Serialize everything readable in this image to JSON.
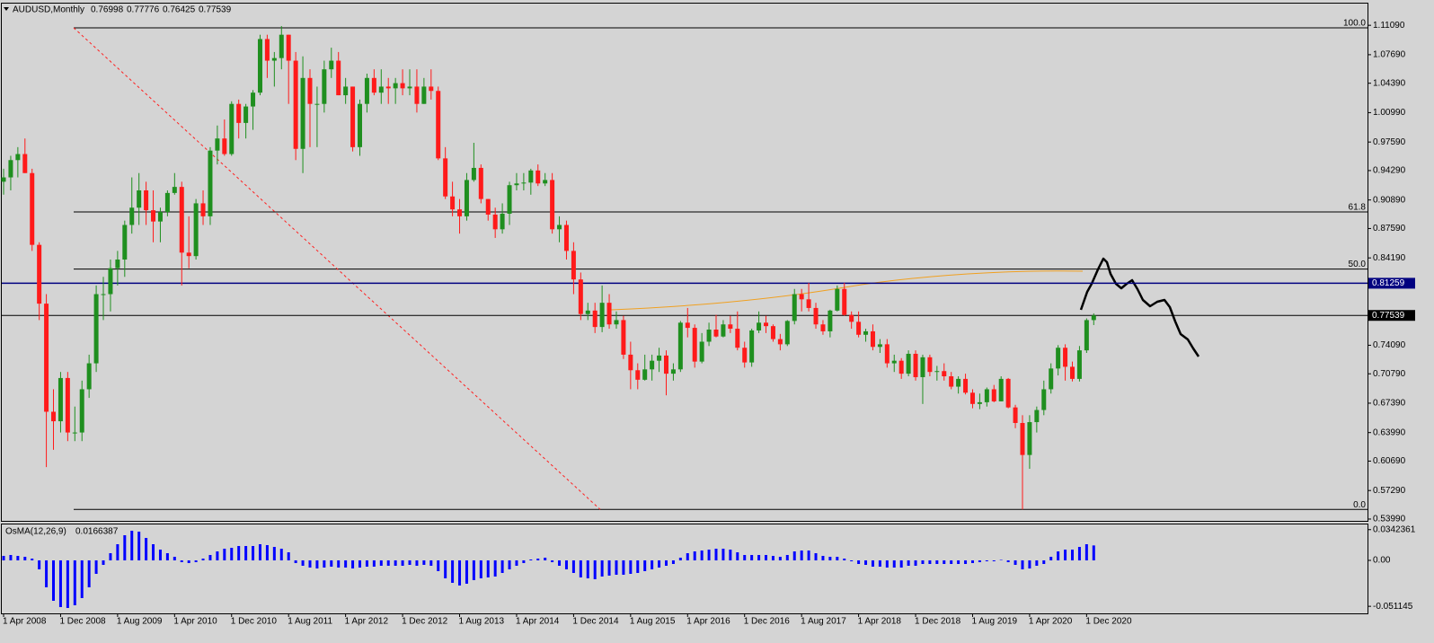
{
  "chart_data": {
    "type": "candlestick",
    "title": "AUDUSD,Monthly",
    "categories": [
      "1 Apr 2008",
      null,
      null,
      null,
      null,
      null,
      null,
      null,
      "1 Dec 2008",
      null,
      null,
      null,
      null,
      null,
      null,
      null,
      "1 Aug 2009",
      null,
      null,
      null,
      null,
      null,
      null,
      null,
      "1 Apr 2010",
      null,
      null,
      null,
      null,
      null,
      null,
      null,
      "1 Dec 2010",
      null,
      null,
      null,
      null,
      null,
      null,
      null,
      "1 Aug 2011",
      null,
      null,
      null,
      null,
      null,
      null,
      null,
      "1 Apr 2012",
      null,
      null,
      null,
      null,
      null,
      null,
      null,
      "1 Dec 2012",
      null,
      null,
      null,
      null,
      null,
      null,
      null,
      "1 Aug 2013",
      null,
      null,
      null,
      null,
      null,
      null,
      null,
      "1 Apr 2014",
      null,
      null,
      null,
      null,
      null,
      null,
      null,
      "1 Dec 2014",
      null,
      null,
      null,
      null,
      null,
      null,
      null,
      "1 Aug 2015",
      null,
      null,
      null,
      null,
      null,
      null,
      null,
      "1 Apr 2016",
      null,
      null,
      null,
      null,
      null,
      null,
      null,
      "1 Dec 2016",
      null,
      null,
      null,
      null,
      null,
      null,
      null,
      "1 Aug 2017",
      null,
      null,
      null,
      null,
      null,
      null,
      null,
      "1 Apr 2018",
      null,
      null,
      null,
      null,
      null,
      null,
      null,
      "1 Dec 2018",
      null,
      null,
      null,
      null,
      null,
      null,
      null,
      "1 Aug 2019",
      null,
      null,
      null,
      null,
      null,
      null,
      null,
      "1 Apr 2020",
      null,
      null,
      null,
      null,
      null,
      null,
      null,
      "1 Dec 2020",
      null
    ],
    "ohlc": [
      [
        0.93,
        0.945,
        0.915,
        0.935
      ],
      [
        0.935,
        0.96,
        0.92,
        0.955
      ],
      [
        0.955,
        0.97,
        0.935,
        0.962
      ],
      [
        0.962,
        0.98,
        0.94,
        0.94
      ],
      [
        0.94,
        0.945,
        0.85,
        0.857
      ],
      [
        0.857,
        0.86,
        0.77,
        0.789
      ],
      [
        0.789,
        0.8,
        0.6,
        0.664
      ],
      [
        0.664,
        0.69,
        0.62,
        0.653
      ],
      [
        0.653,
        0.71,
        0.64,
        0.703
      ],
      [
        0.703,
        0.71,
        0.63,
        0.64
      ],
      [
        0.64,
        0.67,
        0.63,
        0.64
      ],
      [
        0.64,
        0.7,
        0.63,
        0.69
      ],
      [
        0.69,
        0.73,
        0.68,
        0.72
      ],
      [
        0.72,
        0.81,
        0.71,
        0.8
      ],
      [
        0.8,
        0.82,
        0.77,
        0.8
      ],
      [
        0.8,
        0.84,
        0.78,
        0.83
      ],
      [
        0.83,
        0.85,
        0.81,
        0.84
      ],
      [
        0.84,
        0.885,
        0.82,
        0.88
      ],
      [
        0.88,
        0.935,
        0.87,
        0.9
      ],
      [
        0.9,
        0.94,
        0.88,
        0.92
      ],
      [
        0.92,
        0.93,
        0.88,
        0.897
      ],
      [
        0.897,
        0.92,
        0.86,
        0.884
      ],
      [
        0.884,
        0.9,
        0.86,
        0.895
      ],
      [
        0.895,
        0.92,
        0.89,
        0.917
      ],
      [
        0.917,
        0.94,
        0.915,
        0.924
      ],
      [
        0.924,
        0.93,
        0.81,
        0.848
      ],
      [
        0.848,
        0.89,
        0.83,
        0.844
      ],
      [
        0.844,
        0.91,
        0.84,
        0.905
      ],
      [
        0.905,
        0.92,
        0.88,
        0.89
      ],
      [
        0.89,
        0.97,
        0.88,
        0.966
      ],
      [
        0.966,
        0.995,
        0.95,
        0.98
      ],
      [
        0.98,
        1.002,
        0.96,
        0.962
      ],
      [
        0.962,
        1.023,
        0.96,
        1.02
      ],
      [
        1.02,
        1.025,
        0.98,
        0.998
      ],
      [
        0.998,
        1.02,
        0.98,
        1.017
      ],
      [
        1.017,
        1.036,
        0.99,
        1.033
      ],
      [
        1.033,
        1.1,
        1.03,
        1.095
      ],
      [
        1.095,
        1.1,
        1.05,
        1.07
      ],
      [
        1.07,
        1.08,
        1.04,
        1.073
      ],
      [
        1.073,
        1.11,
        1.06,
        1.1
      ],
      [
        1.1,
        1.1,
        1.02,
        1.07
      ],
      [
        1.07,
        1.08,
        0.955,
        0.968
      ],
      [
        0.968,
        1.075,
        0.94,
        1.05
      ],
      [
        1.05,
        1.06,
        0.97,
        1.02
      ],
      [
        1.02,
        1.04,
        0.97,
        1.02
      ],
      [
        1.02,
        1.07,
        1.01,
        1.06
      ],
      [
        1.06,
        1.085,
        1.05,
        1.07
      ],
      [
        1.07,
        1.08,
        1.03,
        1.03
      ],
      [
        1.03,
        1.05,
        1.02,
        1.04
      ],
      [
        1.04,
        1.04,
        0.965,
        0.97
      ],
      [
        0.97,
        1.025,
        0.96,
        1.02
      ],
      [
        1.02,
        1.055,
        1.01,
        1.05
      ],
      [
        1.05,
        1.06,
        1.03,
        1.033
      ],
      [
        1.033,
        1.06,
        1.02,
        1.04
      ],
      [
        1.04,
        1.05,
        1.02,
        1.038
      ],
      [
        1.038,
        1.05,
        1.02,
        1.044
      ],
      [
        1.044,
        1.06,
        1.03,
        1.038
      ],
      [
        1.038,
        1.06,
        1.03,
        1.04
      ],
      [
        1.04,
        1.06,
        1.01,
        1.02
      ],
      [
        1.02,
        1.05,
        1.02,
        1.04
      ],
      [
        1.04,
        1.06,
        1.025,
        1.035
      ],
      [
        1.035,
        1.04,
        0.955,
        0.957
      ],
      [
        0.957,
        0.97,
        0.91,
        0.913
      ],
      [
        0.913,
        0.93,
        0.89,
        0.898
      ],
      [
        0.898,
        0.91,
        0.87,
        0.89
      ],
      [
        0.89,
        0.94,
        0.885,
        0.932
      ],
      [
        0.932,
        0.975,
        0.93,
        0.946
      ],
      [
        0.946,
        0.95,
        0.905,
        0.91
      ],
      [
        0.91,
        0.91,
        0.885,
        0.892
      ],
      [
        0.892,
        0.9,
        0.865,
        0.875
      ],
      [
        0.875,
        0.905,
        0.87,
        0.893
      ],
      [
        0.893,
        0.93,
        0.88,
        0.926
      ],
      [
        0.926,
        0.94,
        0.92,
        0.928
      ],
      [
        0.928,
        0.94,
        0.92,
        0.929
      ],
      [
        0.929,
        0.945,
        0.915,
        0.943
      ],
      [
        0.943,
        0.95,
        0.925,
        0.928
      ],
      [
        0.928,
        0.94,
        0.925,
        0.932
      ],
      [
        0.932,
        0.94,
        0.87,
        0.875
      ],
      [
        0.875,
        0.89,
        0.86,
        0.88
      ],
      [
        0.88,
        0.885,
        0.84,
        0.85
      ],
      [
        0.85,
        0.86,
        0.8,
        0.817
      ],
      [
        0.817,
        0.825,
        0.77,
        0.777
      ],
      [
        0.777,
        0.79,
        0.77,
        0.781
      ],
      [
        0.781,
        0.79,
        0.755,
        0.762
      ],
      [
        0.762,
        0.81,
        0.756,
        0.79
      ],
      [
        0.79,
        0.8,
        0.76,
        0.765
      ],
      [
        0.765,
        0.78,
        0.76,
        0.77
      ],
      [
        0.77,
        0.775,
        0.725,
        0.73
      ],
      [
        0.73,
        0.745,
        0.69,
        0.712
      ],
      [
        0.712,
        0.72,
        0.69,
        0.701
      ],
      [
        0.701,
        0.73,
        0.7,
        0.713
      ],
      [
        0.713,
        0.73,
        0.7,
        0.723
      ],
      [
        0.723,
        0.738,
        0.71,
        0.729
      ],
      [
        0.729,
        0.735,
        0.683,
        0.708
      ],
      [
        0.708,
        0.72,
        0.7,
        0.713
      ],
      [
        0.713,
        0.769,
        0.71,
        0.767
      ],
      [
        0.767,
        0.784,
        0.75,
        0.761
      ],
      [
        0.761,
        0.765,
        0.715,
        0.722
      ],
      [
        0.722,
        0.755,
        0.72,
        0.745
      ],
      [
        0.745,
        0.767,
        0.74,
        0.759
      ],
      [
        0.759,
        0.776,
        0.75,
        0.751
      ],
      [
        0.751,
        0.77,
        0.75,
        0.765
      ],
      [
        0.765,
        0.775,
        0.755,
        0.76
      ],
      [
        0.76,
        0.78,
        0.735,
        0.738
      ],
      [
        0.738,
        0.745,
        0.715,
        0.721
      ],
      [
        0.721,
        0.76,
        0.716,
        0.758
      ],
      [
        0.758,
        0.78,
        0.755,
        0.767
      ],
      [
        0.767,
        0.775,
        0.755,
        0.763
      ],
      [
        0.763,
        0.765,
        0.745,
        0.748
      ],
      [
        0.748,
        0.754,
        0.735,
        0.742
      ],
      [
        0.742,
        0.77,
        0.74,
        0.769
      ],
      [
        0.769,
        0.806,
        0.765,
        0.8
      ],
      [
        0.8,
        0.806,
        0.78,
        0.794
      ],
      [
        0.794,
        0.813,
        0.78,
        0.784
      ],
      [
        0.784,
        0.79,
        0.76,
        0.765
      ],
      [
        0.765,
        0.77,
        0.753,
        0.757
      ],
      [
        0.757,
        0.782,
        0.75,
        0.781
      ],
      [
        0.781,
        0.81,
        0.78,
        0.806
      ],
      [
        0.806,
        0.813,
        0.775,
        0.776
      ],
      [
        0.776,
        0.78,
        0.76,
        0.768
      ],
      [
        0.768,
        0.78,
        0.75,
        0.753
      ],
      [
        0.753,
        0.76,
        0.745,
        0.757
      ],
      [
        0.757,
        0.765,
        0.735,
        0.739
      ],
      [
        0.739,
        0.748,
        0.732,
        0.742
      ],
      [
        0.742,
        0.748,
        0.715,
        0.72
      ],
      [
        0.72,
        0.73,
        0.71,
        0.723
      ],
      [
        0.723,
        0.726,
        0.702,
        0.708
      ],
      [
        0.708,
        0.735,
        0.705,
        0.731
      ],
      [
        0.731,
        0.735,
        0.7,
        0.704
      ],
      [
        0.704,
        0.73,
        0.673,
        0.727
      ],
      [
        0.727,
        0.73,
        0.705,
        0.71
      ],
      [
        0.71,
        0.717,
        0.7,
        0.711
      ],
      [
        0.711,
        0.72,
        0.7,
        0.705
      ],
      [
        0.705,
        0.71,
        0.69,
        0.693
      ],
      [
        0.693,
        0.705,
        0.685,
        0.702
      ],
      [
        0.702,
        0.708,
        0.684,
        0.686
      ],
      [
        0.686,
        0.69,
        0.668,
        0.673
      ],
      [
        0.673,
        0.685,
        0.667,
        0.675
      ],
      [
        0.675,
        0.692,
        0.67,
        0.69
      ],
      [
        0.69,
        0.695,
        0.675,
        0.676
      ],
      [
        0.676,
        0.705,
        0.676,
        0.702
      ],
      [
        0.702,
        0.703,
        0.668,
        0.669
      ],
      [
        0.669,
        0.672,
        0.645,
        0.651
      ],
      [
        0.651,
        0.66,
        0.551,
        0.614
      ],
      [
        0.614,
        0.66,
        0.598,
        0.652
      ],
      [
        0.652,
        0.67,
        0.64,
        0.666
      ],
      [
        0.666,
        0.7,
        0.66,
        0.69
      ],
      [
        0.69,
        0.72,
        0.685,
        0.714
      ],
      [
        0.714,
        0.741,
        0.706,
        0.738
      ],
      [
        0.738,
        0.742,
        0.7,
        0.716
      ],
      [
        0.716,
        0.722,
        0.699,
        0.702
      ],
      [
        0.702,
        0.74,
        0.699,
        0.735
      ],
      [
        0.735,
        0.772,
        0.732,
        0.77
      ],
      [
        0.76998,
        0.77776,
        0.76425,
        0.77539
      ]
    ],
    "up_color": "#1f8f1f",
    "down_color": "#ff1a1a",
    "ylim": [
      0.5378,
      1.136
    ],
    "yticks": [
      {
        "value": 1.1109,
        "label": "1.11090"
      },
      {
        "value": 1.0769,
        "label": "1.07690"
      },
      {
        "value": 1.0439,
        "label": "1.04390"
      },
      {
        "value": 1.0099,
        "label": "1.00990"
      },
      {
        "value": 0.9759,
        "label": "0.97590"
      },
      {
        "value": 0.9429,
        "label": "0.94290"
      },
      {
        "value": 0.9089,
        "label": "0.90890"
      },
      {
        "value": 0.8759,
        "label": "0.87590"
      },
      {
        "value": 0.8419,
        "label": "0.84190"
      },
      {
        "value": 0.7409,
        "label": "0.74090"
      },
      {
        "value": 0.7079,
        "label": "0.70790"
      },
      {
        "value": 0.6739,
        "label": "0.67390"
      },
      {
        "value": 0.6399,
        "label": "0.63990"
      },
      {
        "value": 0.6069,
        "label": "0.60690"
      },
      {
        "value": 0.5729,
        "label": "0.57290"
      },
      {
        "value": 0.5399,
        "label": "0.53990"
      }
    ],
    "fib_levels": [
      {
        "value": 1.108,
        "label": "100.0"
      },
      {
        "value": 0.895,
        "label": "61.8"
      },
      {
        "value": 0.829,
        "label": "50.0"
      },
      {
        "value": 0.551,
        "label": "0.0"
      }
    ],
    "price_lines": [
      {
        "value": 0.81259,
        "color": "#000080"
      },
      {
        "value": 0.77539,
        "color": "#000000"
      }
    ],
    "osma": {
      "name": "OsMA(12,26,9)",
      "color": "#0000ff",
      "values": [
        0.005,
        0.006,
        0.005,
        0.004,
        0.002,
        -0.01,
        -0.03,
        -0.045,
        -0.052,
        -0.053,
        -0.05,
        -0.042,
        -0.03,
        -0.015,
        -0.005,
        0.008,
        0.018,
        0.028,
        0.033,
        0.032,
        0.025,
        0.018,
        0.012,
        0.008,
        0.004,
        -0.002,
        -0.003,
        -0.002,
        0.002,
        0.006,
        0.01,
        0.013,
        0.014,
        0.016,
        0.016,
        0.016,
        0.018,
        0.017,
        0.015,
        0.013,
        0.009,
        -0.003,
        -0.006,
        -0.008,
        -0.009,
        -0.008,
        -0.007,
        -0.008,
        -0.008,
        -0.009,
        -0.008,
        -0.007,
        -0.007,
        -0.006,
        -0.006,
        -0.006,
        -0.006,
        -0.005,
        -0.006,
        -0.005,
        -0.006,
        -0.012,
        -0.02,
        -0.025,
        -0.028,
        -0.026,
        -0.022,
        -0.02,
        -0.019,
        -0.018,
        -0.014,
        -0.01,
        -0.006,
        -0.003,
        0.001,
        0.002,
        0.003,
        -0.002,
        -0.006,
        -0.01,
        -0.014,
        -0.019,
        -0.02,
        -0.021,
        -0.018,
        -0.017,
        -0.016,
        -0.016,
        -0.015,
        -0.014,
        -0.012,
        -0.01,
        -0.008,
        -0.006,
        -0.004,
        0.003,
        0.008,
        0.01,
        0.011,
        0.012,
        0.013,
        0.013,
        0.012,
        0.009,
        0.006,
        0.006,
        0.006,
        0.006,
        0.005,
        0.004,
        0.006,
        0.01,
        0.011,
        0.011,
        0.008,
        0.005,
        0.004,
        0.004,
        0.002,
        -0.001,
        -0.004,
        -0.005,
        -0.007,
        -0.007,
        -0.008,
        -0.008,
        -0.008,
        -0.006,
        -0.006,
        -0.004,
        -0.004,
        -0.004,
        -0.004,
        -0.004,
        -0.004,
        -0.004,
        -0.003,
        -0.002,
        -0.001,
        -0.001,
        0.0005,
        -0.002,
        -0.005,
        -0.01,
        -0.009,
        -0.006,
        -0.004,
        0.004,
        0.01,
        0.012,
        0.012,
        0.015,
        0.018,
        0.0166387
      ],
      "ylim": [
        -0.059,
        0.04
      ],
      "yticks": [
        0.0342361,
        {
          "value": 0,
          "label": "0.00"
        },
        -0.051145
      ]
    }
  }
}
